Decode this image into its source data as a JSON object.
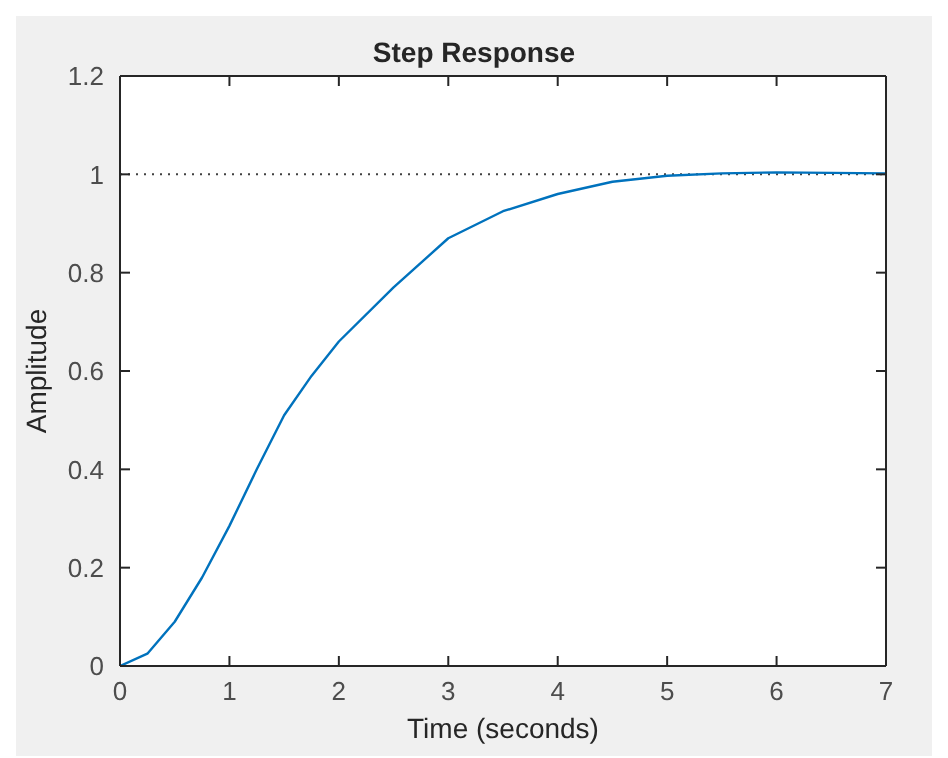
{
  "chart_data": {
    "type": "line",
    "title": "Step Response",
    "xlabel": "Time (seconds)",
    "ylabel": "Amplitude",
    "x": [
      0,
      0.25,
      0.5,
      0.75,
      1,
      1.25,
      1.5,
      1.75,
      2,
      2.5,
      3,
      3.5,
      4,
      4.5,
      5,
      5.5,
      6,
      6.5,
      7
    ],
    "series": [
      {
        "color": "#0072bd",
        "values": [
          0,
          0.025,
          0.09,
          0.18,
          0.285,
          0.4,
          0.51,
          0.59,
          0.66,
          0.77,
          0.87,
          0.925,
          0.96,
          0.985,
          0.997,
          1.002,
          1.004,
          1.003,
          1.002
        ]
      }
    ],
    "xlim": [
      0,
      7
    ],
    "xticks": [
      0,
      1,
      2,
      3,
      4,
      5,
      6,
      7
    ],
    "ylim": [
      0,
      1.2
    ],
    "yticks": [
      0,
      0.2,
      0.4,
      0.6,
      0.8,
      1,
      1.2
    ],
    "ref_lines": [
      {
        "axis": "y",
        "value": 1,
        "color": "#404040",
        "line_style": "dotted"
      }
    ],
    "grid": false,
    "legend": false,
    "marker": "none",
    "line_style": "solid"
  }
}
